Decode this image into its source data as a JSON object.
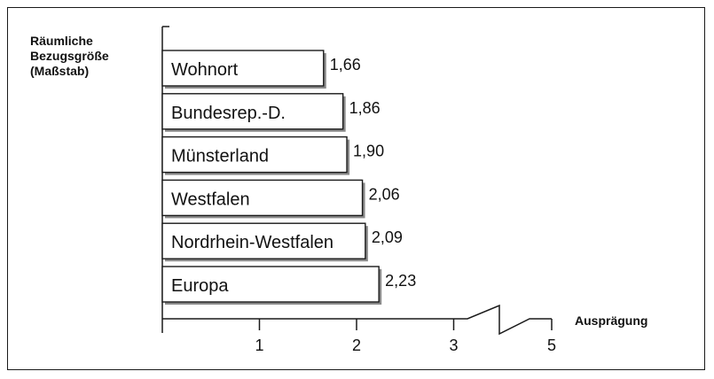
{
  "chart_data": {
    "type": "bar",
    "orientation": "horizontal",
    "ylabel_lines": [
      "Räumliche",
      "Bezugsgröße",
      "(Maßstab)"
    ],
    "xlabel": "Ausprägung",
    "categories": [
      "Wohnort",
      "Bundesrep.-D.",
      "Münsterland",
      "Westfalen",
      "Nordrhein-Westfalen",
      "Europa"
    ],
    "values": [
      1.66,
      1.86,
      1.9,
      2.06,
      2.09,
      2.23
    ],
    "value_labels": [
      "1,66",
      "1,86",
      "1,90",
      "2,06",
      "2,09",
      "2,23"
    ],
    "xticks": [
      1,
      2,
      3,
      5
    ],
    "xtick_labels": [
      "1",
      "2",
      "3",
      "5"
    ],
    "xlim": [
      0,
      5
    ],
    "axis_break": "between 3 and 5",
    "grid": false,
    "colors": {
      "bar_fill": "#ffffff",
      "bar_shadow": "#8a8a8a",
      "axis": "#1a1a1a"
    }
  }
}
